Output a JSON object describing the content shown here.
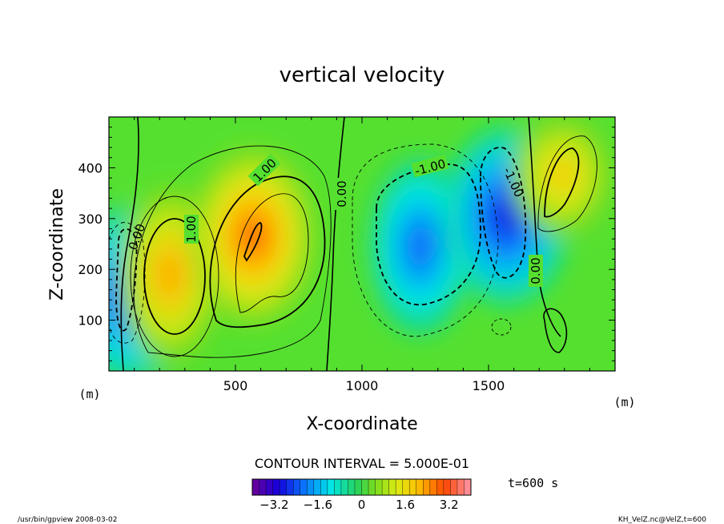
{
  "chart_data": {
    "type": "heatmap",
    "title": "vertical velocity",
    "xlabel": "X-coordinate",
    "ylabel": "Z-coordinate",
    "x_unit": "(m)",
    "y_unit": "(m)",
    "xlim": [
      0,
      2000
    ],
    "ylim": [
      0,
      500
    ],
    "x_ticks": [
      500,
      1000,
      1500
    ],
    "y_ticks": [
      100,
      200,
      300,
      400
    ],
    "contour_interval_text": "CONTOUR INTERVAL = 5.000E-01",
    "contour_interval": 0.5,
    "time_label": "t=600 s",
    "colorbar": {
      "min": -4.0,
      "max": 4.0,
      "ticks": [
        -3.2,
        -1.6,
        0,
        1.6,
        3.2
      ],
      "tick_labels": [
        "-3.2",
        "-1.6",
        "0",
        "1.6",
        "3.2"
      ]
    },
    "contour_labels": [
      "1.00",
      "1.00",
      "0.00",
      "-1.00",
      "-1.00",
      "0.00",
      "0.00"
    ],
    "field_features": [
      {
        "x": 80,
        "z": 150,
        "value": -2.5
      },
      {
        "x": 240,
        "z": 190,
        "value": 2.2
      },
      {
        "x": 570,
        "z": 265,
        "value": 2.7
      },
      {
        "x": 1230,
        "z": 245,
        "value": -2.2
      },
      {
        "x": 1570,
        "z": 305,
        "value": -2.8
      },
      {
        "x": 1790,
        "z": 385,
        "value": 1.8
      }
    ]
  },
  "footer": {
    "left": "/usr/bin/gpview  2008-03-02",
    "right": "KH_VelZ.nc@VelZ,t=600"
  }
}
